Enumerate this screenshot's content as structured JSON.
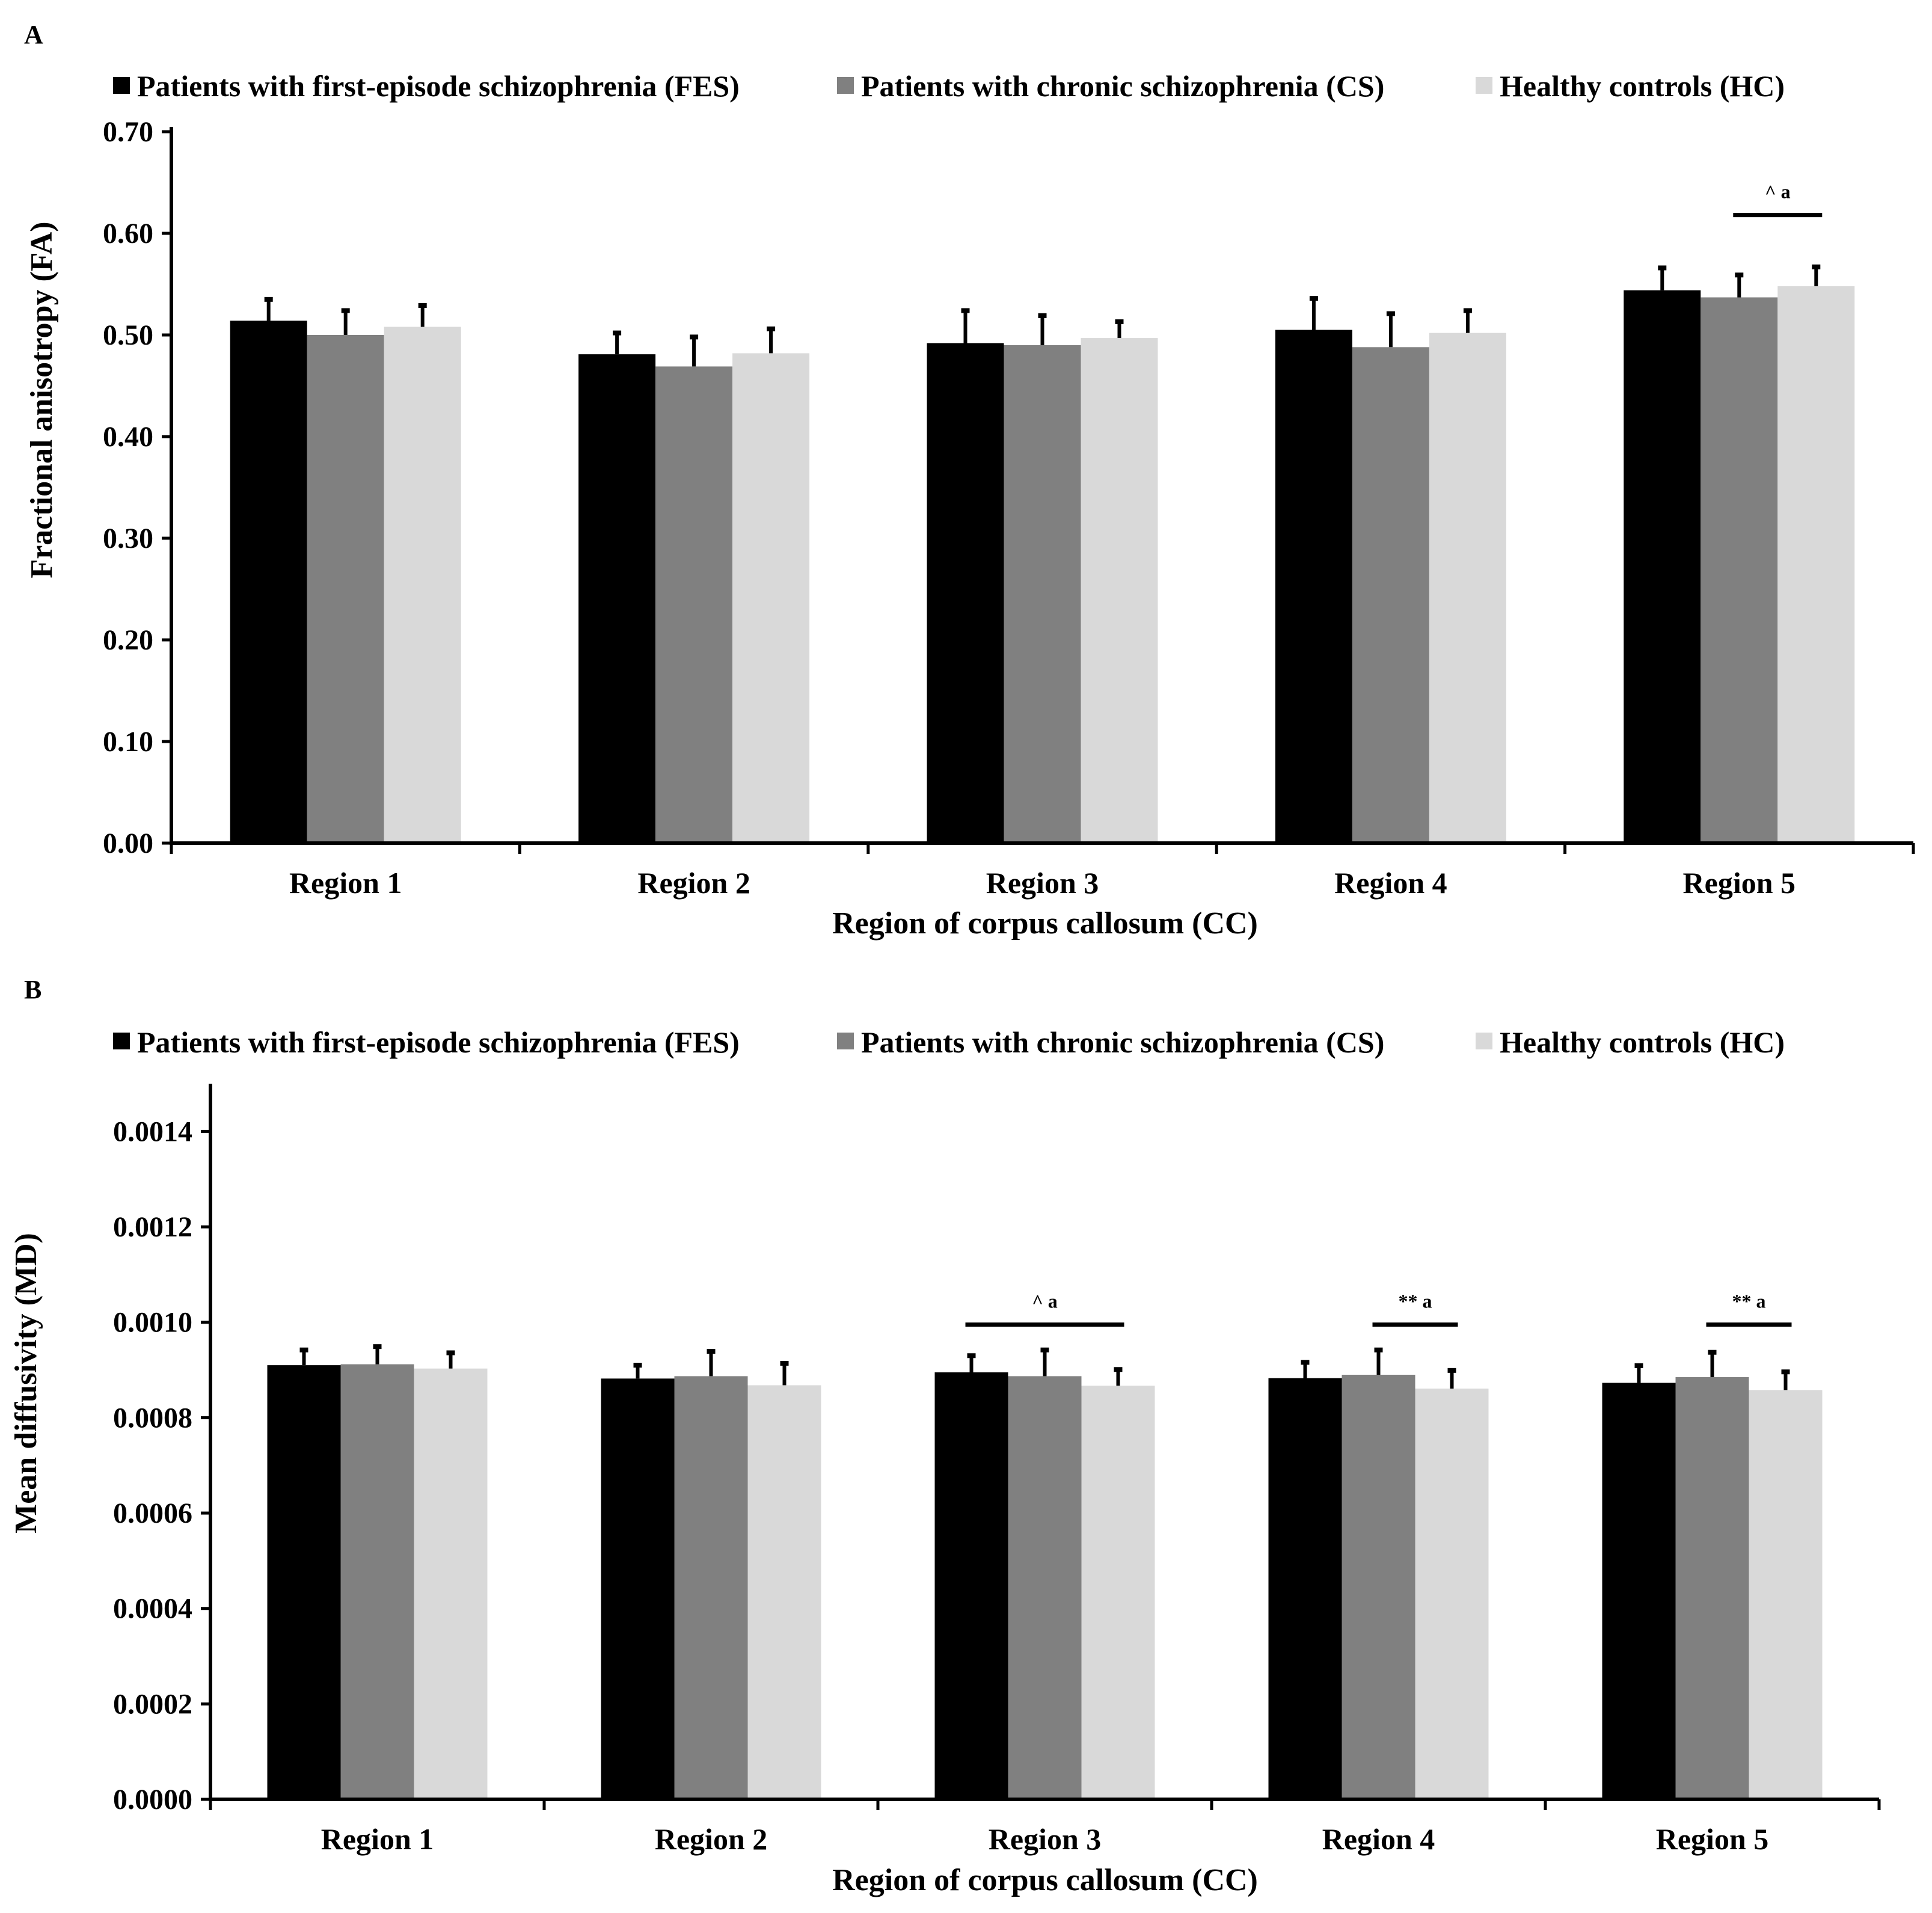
{
  "figure": {
    "panels": [
      "A",
      "B"
    ]
  },
  "chart_data": [
    {
      "panel_label": "A",
      "type": "bar",
      "title": "",
      "categories": [
        "Region 1",
        "Region 2",
        "Region 3",
        "Region 4",
        "Region 5"
      ],
      "series": [
        {
          "name": "Patients with first-episode schizophrenia (FES)",
          "color": "#000000",
          "values": [
            0.514,
            0.481,
            0.492,
            0.505,
            0.544
          ],
          "errors": [
            0.021,
            0.021,
            0.032,
            0.031,
            0.022
          ]
        },
        {
          "name": "Patients with chronic schizophrenia (CS)",
          "color": "#808080",
          "values": [
            0.5,
            0.469,
            0.49,
            0.488,
            0.537
          ],
          "errors": [
            0.024,
            0.029,
            0.029,
            0.033,
            0.022
          ]
        },
        {
          "name": "Healthy controls (HC)",
          "color": "#d9d9d9",
          "values": [
            0.508,
            0.482,
            0.497,
            0.502,
            0.548
          ],
          "errors": [
            0.021,
            0.024,
            0.016,
            0.022,
            0.019
          ]
        }
      ],
      "ylim": [
        0,
        0.7
      ],
      "yticks": [
        "0.00",
        "0.10",
        "0.20",
        "0.30",
        "0.40",
        "0.50",
        "0.60",
        "0.70"
      ],
      "xlabel": "Region of corpus callosum (CC)",
      "ylabel": "Fractional anisotropy (FA)",
      "legend_position": "top",
      "annotations": [
        {
          "category_index": 4,
          "from_series": 1,
          "to_series": 2,
          "text": "^ a",
          "y": 0.618
        }
      ]
    },
    {
      "panel_label": "B",
      "type": "bar",
      "title": "",
      "categories": [
        "Region 1",
        "Region 2",
        "Region 3",
        "Region 4",
        "Region 5"
      ],
      "series": [
        {
          "name": "Patients with first-episode schizophrenia (FES)",
          "color": "#000000",
          "values": [
            0.00091,
            0.000882,
            0.000895,
            0.000883,
            0.000873
          ],
          "errors": [
            3.2e-05,
            2.8e-05,
            3.5e-05,
            3.3e-05,
            3.6e-05
          ]
        },
        {
          "name": "Patients with chronic schizophrenia (CS)",
          "color": "#808080",
          "values": [
            0.000912,
            0.000887,
            0.000887,
            0.00089,
            0.000885
          ],
          "errors": [
            3.7e-05,
            5.2e-05,
            5.5e-05,
            5.2e-05,
            5.2e-05
          ]
        },
        {
          "name": "Healthy controls (HC)",
          "color": "#d9d9d9",
          "values": [
            0.000903,
            0.000868,
            0.000867,
            0.000861,
            0.000858
          ],
          "errors": [
            3.3e-05,
            4.6e-05,
            3.4e-05,
            3.8e-05,
            3.8e-05
          ]
        }
      ],
      "ylim": [
        0,
        0.00149
      ],
      "yticks": [
        "0.0000",
        "0.0002",
        "0.0004",
        "0.0006",
        "0.0008",
        "0.0010",
        "0.0012",
        "0.0014"
      ],
      "xlabel": "Region of corpus callosum (CC)",
      "ylabel": "Mean diffusivity (MD)",
      "legend_position": "top",
      "annotations": [
        {
          "category_index": 2,
          "from_series": 0,
          "to_series": 2,
          "text": "^ a",
          "y": 0.000995
        },
        {
          "category_index": 3,
          "from_series": 1,
          "to_series": 2,
          "text": "** a",
          "y": 0.000995
        },
        {
          "category_index": 4,
          "from_series": 1,
          "to_series": 2,
          "text": "** a",
          "y": 0.000995
        }
      ]
    }
  ]
}
